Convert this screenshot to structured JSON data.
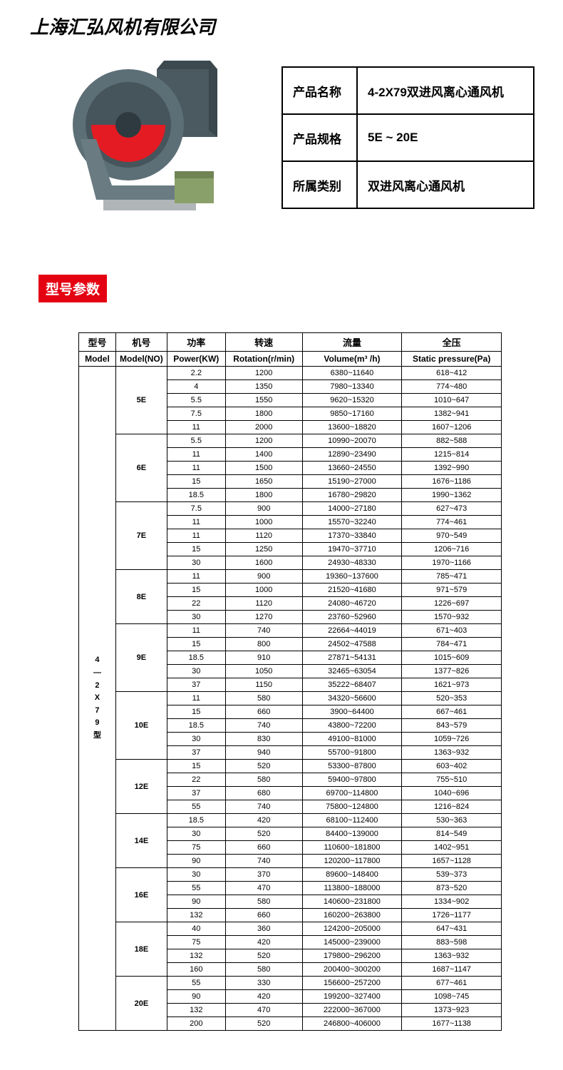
{
  "company_name": "上海汇弘风机有限公司",
  "info_table": {
    "rows": [
      {
        "label": "产品名称",
        "value": "4-2X79双进风离心通风机"
      },
      {
        "label": "产品规格",
        "value": "5E ~ 20E"
      },
      {
        "label": "所属类别",
        "value": "双进风离心通风机"
      }
    ]
  },
  "section_badge": "型号参数",
  "spec_table": {
    "headers_cn": [
      "型号",
      "机号",
      "功率",
      "转速",
      "流量",
      "全压"
    ],
    "headers_en": [
      "Model",
      "Model(NO)",
      "Power(KW)",
      "Rotation(r/min)",
      "Volume(m³ /h)",
      "Static pressure(Pa)"
    ],
    "model_vertical": [
      "4",
      "—",
      "2",
      "X",
      "7",
      "9",
      "型"
    ],
    "groups": [
      {
        "model_no": "5E",
        "rows": [
          {
            "power": "2.2",
            "rotation": "1200",
            "volume": "6380~11640",
            "pressure": "618~412"
          },
          {
            "power": "4",
            "rotation": "1350",
            "volume": "7980~13340",
            "pressure": "774~480"
          },
          {
            "power": "5.5",
            "rotation": "1550",
            "volume": "9620~15320",
            "pressure": "1010~647"
          },
          {
            "power": "7.5",
            "rotation": "1800",
            "volume": "9850~17160",
            "pressure": "1382~941"
          },
          {
            "power": "11",
            "rotation": "2000",
            "volume": "13600~18820",
            "pressure": "1607~1206"
          }
        ]
      },
      {
        "model_no": "6E",
        "rows": [
          {
            "power": "5.5",
            "rotation": "1200",
            "volume": "10990~20070",
            "pressure": "882~588"
          },
          {
            "power": "11",
            "rotation": "1400",
            "volume": "12890~23490",
            "pressure": "1215~814"
          },
          {
            "power": "11",
            "rotation": "1500",
            "volume": "13660~24550",
            "pressure": "1392~990"
          },
          {
            "power": "15",
            "rotation": "1650",
            "volume": "15190~27000",
            "pressure": "1676~1186"
          },
          {
            "power": "18.5",
            "rotation": "1800",
            "volume": "16780~29820",
            "pressure": "1990~1362"
          }
        ]
      },
      {
        "model_no": "7E",
        "rows": [
          {
            "power": "7.5",
            "rotation": "900",
            "volume": "14000~27180",
            "pressure": "627~473"
          },
          {
            "power": "11",
            "rotation": "1000",
            "volume": "15570~32240",
            "pressure": "774~461"
          },
          {
            "power": "11",
            "rotation": "1120",
            "volume": "17370~33840",
            "pressure": "970~549"
          },
          {
            "power": "15",
            "rotation": "1250",
            "volume": "19470~37710",
            "pressure": "1206~716"
          },
          {
            "power": "30",
            "rotation": "1600",
            "volume": "24930~48330",
            "pressure": "1970~1166"
          }
        ]
      },
      {
        "model_no": "8E",
        "rows": [
          {
            "power": "11",
            "rotation": "900",
            "volume": "19360~137600",
            "pressure": "785~471"
          },
          {
            "power": "15",
            "rotation": "1000",
            "volume": "21520~41680",
            "pressure": "971~579"
          },
          {
            "power": "22",
            "rotation": "1120",
            "volume": "24080~46720",
            "pressure": "1226~697"
          },
          {
            "power": "30",
            "rotation": "1270",
            "volume": "23760~52960",
            "pressure": "1570~932"
          }
        ]
      },
      {
        "model_no": "9E",
        "rows": [
          {
            "power": "11",
            "rotation": "740",
            "volume": "22664~44019",
            "pressure": "671~403"
          },
          {
            "power": "15",
            "rotation": "800",
            "volume": "24502~47588",
            "pressure": "784~471"
          },
          {
            "power": "18.5",
            "rotation": "910",
            "volume": "27871~54131",
            "pressure": "1015~609"
          },
          {
            "power": "30",
            "rotation": "1050",
            "volume": "32465~63054",
            "pressure": "1377~826"
          },
          {
            "power": "37",
            "rotation": "1150",
            "volume": "35222~68407",
            "pressure": "1621~973"
          }
        ]
      },
      {
        "model_no": "10E",
        "rows": [
          {
            "power": "11",
            "rotation": "580",
            "volume": "34320~56600",
            "pressure": "520~353"
          },
          {
            "power": "15",
            "rotation": "660",
            "volume": "3900~64400",
            "pressure": "667~461"
          },
          {
            "power": "18.5",
            "rotation": "740",
            "volume": "43800~72200",
            "pressure": "843~579"
          },
          {
            "power": "30",
            "rotation": "830",
            "volume": "49100~81000",
            "pressure": "1059~726"
          },
          {
            "power": "37",
            "rotation": "940",
            "volume": "55700~91800",
            "pressure": "1363~932"
          }
        ]
      },
      {
        "model_no": "12E",
        "rows": [
          {
            "power": "15",
            "rotation": "520",
            "volume": "53300~87800",
            "pressure": "603~402"
          },
          {
            "power": "22",
            "rotation": "580",
            "volume": "59400~97800",
            "pressure": "755~510"
          },
          {
            "power": "37",
            "rotation": "680",
            "volume": "69700~114800",
            "pressure": "1040~696"
          },
          {
            "power": "55",
            "rotation": "740",
            "volume": "75800~124800",
            "pressure": "1216~824"
          }
        ]
      },
      {
        "model_no": "14E",
        "rows": [
          {
            "power": "18.5",
            "rotation": "420",
            "volume": "68100~112400",
            "pressure": "530~363"
          },
          {
            "power": "30",
            "rotation": "520",
            "volume": "84400~139000",
            "pressure": "814~549"
          },
          {
            "power": "75",
            "rotation": "660",
            "volume": "110600~181800",
            "pressure": "1402~951"
          },
          {
            "power": "90",
            "rotation": "740",
            "volume": "120200~117800",
            "pressure": "1657~1128"
          }
        ]
      },
      {
        "model_no": "16E",
        "rows": [
          {
            "power": "30",
            "rotation": "370",
            "volume": "89600~148400",
            "pressure": "539~373"
          },
          {
            "power": "55",
            "rotation": "470",
            "volume": "113800~188000",
            "pressure": "873~520"
          },
          {
            "power": "90",
            "rotation": "580",
            "volume": "140600~231800",
            "pressure": "1334~902"
          },
          {
            "power": "132",
            "rotation": "660",
            "volume": "160200~263800",
            "pressure": "1726~1177"
          }
        ]
      },
      {
        "model_no": "18E",
        "rows": [
          {
            "power": "40",
            "rotation": "360",
            "volume": "124200~205000",
            "pressure": "647~431"
          },
          {
            "power": "75",
            "rotation": "420",
            "volume": "145000~239000",
            "pressure": "883~598"
          },
          {
            "power": "132",
            "rotation": "520",
            "volume": "179800~296200",
            "pressure": "1363~932"
          },
          {
            "power": "160",
            "rotation": "580",
            "volume": "200400~300200",
            "pressure": "1687~1147"
          }
        ]
      },
      {
        "model_no": "20E",
        "rows": [
          {
            "power": "55",
            "rotation": "330",
            "volume": "156600~257200",
            "pressure": "677~461"
          },
          {
            "power": "90",
            "rotation": "420",
            "volume": "199200~327400",
            "pressure": "1098~745"
          },
          {
            "power": "132",
            "rotation": "470",
            "volume": "222000~367000",
            "pressure": "1373~923"
          },
          {
            "power": "200",
            "rotation": "520",
            "volume": "246800~406000",
            "pressure": "1677~1138"
          }
        ]
      }
    ]
  },
  "colors": {
    "badge_bg": "#e40112",
    "badge_fg": "#ffffff",
    "border": "#000000",
    "fan_housing": "#5a6d75",
    "fan_inlet": "#e41b23",
    "motor": "#8aa06a"
  }
}
